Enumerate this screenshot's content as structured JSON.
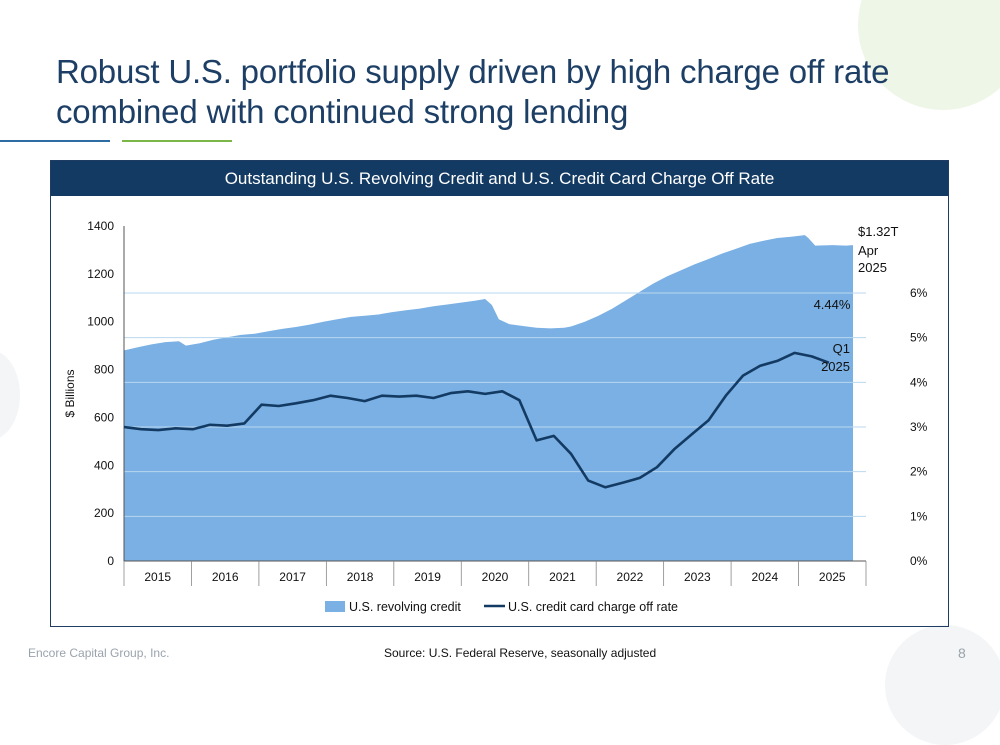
{
  "slide": {
    "title": "Robust U.S. portfolio supply driven by high charge off rate combined with continued strong lending",
    "footer_company": "Encore Capital Group, Inc.",
    "footer_source": "Source: U.S. Federal Reserve, seasonally adjusted",
    "page_number": "8"
  },
  "colors": {
    "title": "#1d3f66",
    "header_bg": "#133a63",
    "area": "#7ab0e3",
    "line": "#133a63"
  },
  "chart_data": {
    "type": "area",
    "title": "Outstanding U.S. Revolving Credit and U.S. Credit Card Charge Off Rate",
    "ylabel": "$ Billions",
    "ylim": [
      0,
      1400
    ],
    "y_ticks": [
      "0",
      "200",
      "400",
      "600",
      "800",
      "1000",
      "1200",
      "1400"
    ],
    "y2lim": [
      0,
      7.5
    ],
    "y2_ticks": [
      "0%",
      "1%",
      "2%",
      "3%",
      "4%",
      "5%",
      "6%"
    ],
    "xlim": [
      2014.5,
      2025.5
    ],
    "x_ticks": [
      "2015",
      "2016",
      "2017",
      "2018",
      "2019",
      "2020",
      "2021",
      "2022",
      "2023",
      "2024",
      "2025"
    ],
    "legend_position": "bottom",
    "series": [
      {
        "name": "U.S. revolving credit",
        "type": "area",
        "axis": "left",
        "points": [
          [
            2014.5,
            880
          ],
          [
            2014.7,
            893
          ],
          [
            2014.9,
            905
          ],
          [
            2015.1,
            915
          ],
          [
            2015.3,
            918
          ],
          [
            2015.4,
            900
          ],
          [
            2015.6,
            910
          ],
          [
            2015.8,
            925
          ],
          [
            2016.0,
            935
          ],
          [
            2016.2,
            945
          ],
          [
            2016.4,
            950
          ],
          [
            2016.6,
            960
          ],
          [
            2016.8,
            970
          ],
          [
            2017.0,
            978
          ],
          [
            2017.2,
            988
          ],
          [
            2017.4,
            1000
          ],
          [
            2017.6,
            1010
          ],
          [
            2017.8,
            1020
          ],
          [
            2018.0,
            1025
          ],
          [
            2018.2,
            1030
          ],
          [
            2018.4,
            1040
          ],
          [
            2018.6,
            1048
          ],
          [
            2018.8,
            1055
          ],
          [
            2019.0,
            1065
          ],
          [
            2019.2,
            1072
          ],
          [
            2019.4,
            1080
          ],
          [
            2019.6,
            1088
          ],
          [
            2019.75,
            1095
          ],
          [
            2019.85,
            1070
          ],
          [
            2019.95,
            1010
          ],
          [
            2020.1,
            990
          ],
          [
            2020.3,
            982
          ],
          [
            2020.5,
            975
          ],
          [
            2020.7,
            972
          ],
          [
            2020.9,
            975
          ],
          [
            2021.0,
            980
          ],
          [
            2021.2,
            1000
          ],
          [
            2021.4,
            1025
          ],
          [
            2021.6,
            1055
          ],
          [
            2021.8,
            1090
          ],
          [
            2022.0,
            1125
          ],
          [
            2022.2,
            1160
          ],
          [
            2022.4,
            1190
          ],
          [
            2022.6,
            1215
          ],
          [
            2022.8,
            1240
          ],
          [
            2023.0,
            1262
          ],
          [
            2023.2,
            1285
          ],
          [
            2023.4,
            1305
          ],
          [
            2023.6,
            1325
          ],
          [
            2023.8,
            1338
          ],
          [
            2024.0,
            1350
          ],
          [
            2024.2,
            1355
          ],
          [
            2024.4,
            1362
          ],
          [
            2024.45,
            1350
          ],
          [
            2024.55,
            1318
          ],
          [
            2024.8,
            1320
          ],
          [
            2025.0,
            1318
          ],
          [
            2025.1,
            1320
          ]
        ]
      },
      {
        "name": "U.S. credit card charge off rate",
        "type": "line",
        "axis": "right",
        "points": [
          [
            2014.5,
            3.0
          ],
          [
            2014.75,
            2.95
          ],
          [
            2015.0,
            2.93
          ],
          [
            2015.25,
            2.97
          ],
          [
            2015.5,
            2.95
          ],
          [
            2015.75,
            3.05
          ],
          [
            2016.0,
            3.03
          ],
          [
            2016.25,
            3.08
          ],
          [
            2016.5,
            3.5
          ],
          [
            2016.75,
            3.47
          ],
          [
            2017.0,
            3.53
          ],
          [
            2017.25,
            3.6
          ],
          [
            2017.5,
            3.7
          ],
          [
            2017.75,
            3.65
          ],
          [
            2018.0,
            3.58
          ],
          [
            2018.25,
            3.7
          ],
          [
            2018.5,
            3.68
          ],
          [
            2018.75,
            3.7
          ],
          [
            2019.0,
            3.65
          ],
          [
            2019.25,
            3.76
          ],
          [
            2019.5,
            3.8
          ],
          [
            2019.75,
            3.74
          ],
          [
            2020.0,
            3.8
          ],
          [
            2020.25,
            3.6
          ],
          [
            2020.5,
            2.7
          ],
          [
            2020.75,
            2.8
          ],
          [
            2021.0,
            2.4
          ],
          [
            2021.25,
            1.8
          ],
          [
            2021.5,
            1.65
          ],
          [
            2021.75,
            1.75
          ],
          [
            2022.0,
            1.86
          ],
          [
            2022.25,
            2.1
          ],
          [
            2022.5,
            2.5
          ],
          [
            2022.75,
            2.83
          ],
          [
            2023.0,
            3.15
          ],
          [
            2023.25,
            3.7
          ],
          [
            2023.5,
            4.15
          ],
          [
            2023.75,
            4.37
          ],
          [
            2024.0,
            4.48
          ],
          [
            2024.25,
            4.66
          ],
          [
            2024.5,
            4.58
          ],
          [
            2024.75,
            4.44
          ]
        ]
      }
    ],
    "annotations": [
      {
        "text": [
          "$1.32T",
          "Apr",
          "2025"
        ],
        "series": "U.S. revolving credit"
      },
      {
        "text": [
          "4.44%"
        ],
        "series": "U.S. credit card charge off rate"
      },
      {
        "text": [
          "Q1",
          "2025"
        ],
        "series": "U.S. credit card charge off rate"
      }
    ]
  }
}
